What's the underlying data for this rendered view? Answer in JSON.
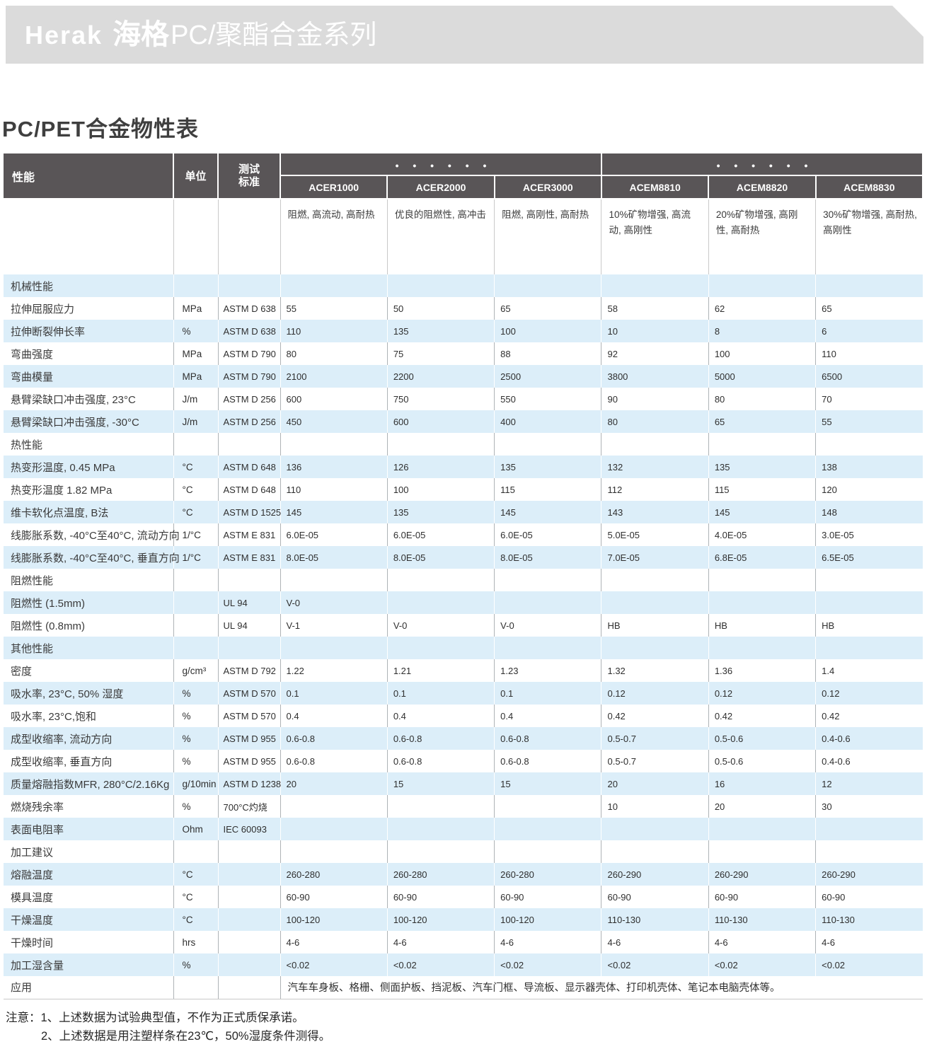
{
  "banner": {
    "brand": "Herak",
    "brand_cn": "海格",
    "series": "PC/聚酯合金系列"
  },
  "page_title": "PC/PET合金物性表",
  "table": {
    "columns": {
      "property": "性能",
      "unit": "单位",
      "standard": "测试\n标准"
    },
    "groups": [
      {
        "dots": "• • • • • •"
      },
      {
        "dots": "• • • • • •"
      }
    ],
    "products": [
      {
        "name": "ACER1000",
        "desc": "阻燃, 高流动, 高耐热"
      },
      {
        "name": "ACER2000",
        "desc": "优良的阻燃性, 高冲击"
      },
      {
        "name": "ACER3000",
        "desc": "阻燃, 高刚性, 高耐热"
      },
      {
        "name": "ACEM8810",
        "desc": "10%矿物增强, 高流动, 高刚性"
      },
      {
        "name": "ACEM8820",
        "desc": "20%矿物增强, 高刚性, 高耐热"
      },
      {
        "name": "ACEM8830",
        "desc": "30%矿物增强, 高耐热, 高刚性"
      }
    ],
    "rows": [
      {
        "type": "section",
        "label": "机械性能"
      },
      {
        "type": "data",
        "label": "拉伸屈服应力",
        "unit": "MPa",
        "standard": "ASTM D 638",
        "values": [
          "55",
          "50",
          "65",
          "58",
          "62",
          "65"
        ]
      },
      {
        "type": "data",
        "label": "拉伸断裂伸长率",
        "unit": "%",
        "standard": "ASTM D 638",
        "values": [
          "110",
          "135",
          "100",
          "10",
          "8",
          "6"
        ]
      },
      {
        "type": "data",
        "label": "弯曲强度",
        "unit": "MPa",
        "standard": "ASTM D 790",
        "values": [
          "80",
          "75",
          "88",
          "92",
          "100",
          "110"
        ]
      },
      {
        "type": "data",
        "label": "弯曲模量",
        "unit": "MPa",
        "standard": "ASTM D 790",
        "values": [
          "2100",
          "2200",
          "2500",
          "3800",
          "5000",
          "6500"
        ]
      },
      {
        "type": "data",
        "label": "悬臂梁缺口冲击强度, 23°C",
        "unit": "J/m",
        "standard": "ASTM D 256",
        "values": [
          "600",
          "750",
          "550",
          "90",
          "80",
          "70"
        ]
      },
      {
        "type": "data",
        "label": "悬臂梁缺口冲击强度, -30°C",
        "unit": "J/m",
        "standard": "ASTM D 256",
        "values": [
          "450",
          "600",
          "400",
          "80",
          "65",
          "55"
        ]
      },
      {
        "type": "section",
        "label": "热性能"
      },
      {
        "type": "data",
        "label": "热变形温度, 0.45 MPa",
        "unit": "°C",
        "standard": "ASTM D 648",
        "values": [
          "136",
          "126",
          "135",
          "132",
          "135",
          "138"
        ]
      },
      {
        "type": "data",
        "label": "热变形温度  1.82 MPa",
        "unit": "°C",
        "standard": "ASTM D 648",
        "values": [
          "110",
          "100",
          "115",
          "112",
          "115",
          "120"
        ]
      },
      {
        "type": "data",
        "label": "维卡软化点温度, B法",
        "unit": "°C",
        "standard": "ASTM D 1525",
        "values": [
          "145",
          "135",
          "145",
          "143",
          "145",
          "148"
        ]
      },
      {
        "type": "data",
        "label": "线膨胀系数, -40°C至40°C, 流动方向",
        "unit": "1/°C",
        "standard": "ASTM E 831",
        "values": [
          "6.0E-05",
          "6.0E-05",
          "6.0E-05",
          "5.0E-05",
          "4.0E-05",
          "3.0E-05"
        ]
      },
      {
        "type": "data",
        "label": "线膨胀系数, -40°C至40°C, 垂直方向",
        "unit": "1/°C",
        "standard": "ASTM E 831",
        "values": [
          "8.0E-05",
          "8.0E-05",
          "8.0E-05",
          "7.0E-05",
          "6.8E-05",
          "6.5E-05"
        ]
      },
      {
        "type": "section",
        "label": "阻燃性能"
      },
      {
        "type": "data",
        "label": "阻燃性 (1.5mm)",
        "unit": "",
        "standard": "UL 94",
        "values": [
          "V-0",
          "",
          "",
          "",
          "",
          ""
        ]
      },
      {
        "type": "data",
        "label": "阻燃性 (0.8mm)",
        "unit": "",
        "standard": "UL 94",
        "values": [
          "V-1",
          "V-0",
          "V-0",
          "HB",
          "HB",
          "HB"
        ]
      },
      {
        "type": "section",
        "label": "其他性能"
      },
      {
        "type": "data",
        "label": "密度",
        "unit": "g/cm³",
        "standard": "ASTM D 792",
        "values": [
          "1.22",
          "1.21",
          "1.23",
          "1.32",
          "1.36",
          "1.4"
        ]
      },
      {
        "type": "data",
        "label": "吸水率, 23°C, 50% 湿度",
        "unit": "%",
        "standard": "ASTM D 570",
        "values": [
          "0.1",
          "0.1",
          "0.1",
          "0.12",
          "0.12",
          "0.12"
        ]
      },
      {
        "type": "data",
        "label": "吸水率, 23°C,饱和",
        "unit": "%",
        "standard": "ASTM D 570",
        "values": [
          "0.4",
          "0.4",
          "0.4",
          "0.42",
          "0.42",
          "0.42"
        ]
      },
      {
        "type": "data",
        "label": "成型收缩率, 流动方向",
        "unit": "%",
        "standard": "ASTM D 955",
        "values": [
          "0.6-0.8",
          "0.6-0.8",
          "0.6-0.8",
          "0.5-0.7",
          "0.5-0.6",
          "0.4-0.6"
        ]
      },
      {
        "type": "data",
        "label": "成型收缩率, 垂直方向",
        "unit": "%",
        "standard": "ASTM D 955",
        "values": [
          "0.6-0.8",
          "0.6-0.8",
          "0.6-0.8",
          "0.5-0.7",
          "0.5-0.6",
          "0.4-0.6"
        ]
      },
      {
        "type": "data",
        "label": "质量熔融指数MFR, 280°C/2.16Kg",
        "unit": "g/10min",
        "standard": "ASTM D 1238",
        "values": [
          "20",
          "15",
          "15",
          "20",
          "16",
          "12"
        ]
      },
      {
        "type": "data",
        "label": "燃烧残余率",
        "unit": "%",
        "standard": "700°C灼烧",
        "values": [
          "",
          "",
          "",
          "10",
          "20",
          "30"
        ]
      },
      {
        "type": "data",
        "label": "表面电阻率",
        "unit": "Ohm",
        "standard": "IEC 60093",
        "values": [
          "",
          "",
          "",
          "",
          "",
          ""
        ]
      },
      {
        "type": "section",
        "label": "加工建议"
      },
      {
        "type": "data",
        "label": "熔融温度",
        "unit": "°C",
        "standard": "",
        "values": [
          "260-280",
          "260-280",
          "260-280",
          "260-290",
          "260-290",
          "260-290"
        ]
      },
      {
        "type": "data",
        "label": "模具温度",
        "unit": "°C",
        "standard": "",
        "values": [
          "60-90",
          "60-90",
          "60-90",
          "60-90",
          "60-90",
          "60-90"
        ]
      },
      {
        "type": "data",
        "label": "干燥温度",
        "unit": "°C",
        "standard": "",
        "values": [
          "100-120",
          "100-120",
          "100-120",
          "110-130",
          "110-130",
          "110-130"
        ]
      },
      {
        "type": "data",
        "label": "干燥时间",
        "unit": "hrs",
        "standard": "",
        "values": [
          "4-6",
          "4-6",
          "4-6",
          "4-6",
          "4-6",
          "4-6"
        ]
      },
      {
        "type": "data",
        "label": "加工湿含量",
        "unit": "%",
        "standard": "",
        "values": [
          "<0.02",
          "<0.02",
          "<0.02",
          "<0.02",
          "<0.02",
          "<0.02"
        ]
      },
      {
        "type": "span",
        "label": "应用",
        "span_text": "汽车车身板、格栅、侧面护板、挡泥板、汽车门框、导流板、显示器壳体、打印机壳体、笔记本电脑壳体等。"
      }
    ]
  },
  "notes": {
    "line1": "注意：1、上述数据为试验典型值，不作为正式质保承诺。",
    "line2": "2、上述数据是用注塑样条在23℃，50%湿度条件测得。"
  },
  "colors": {
    "header_bg": "#595557",
    "row_alt": "#dceef9",
    "banner_bg": "#dbdbdb",
    "title_text": "#3f3f3f"
  }
}
